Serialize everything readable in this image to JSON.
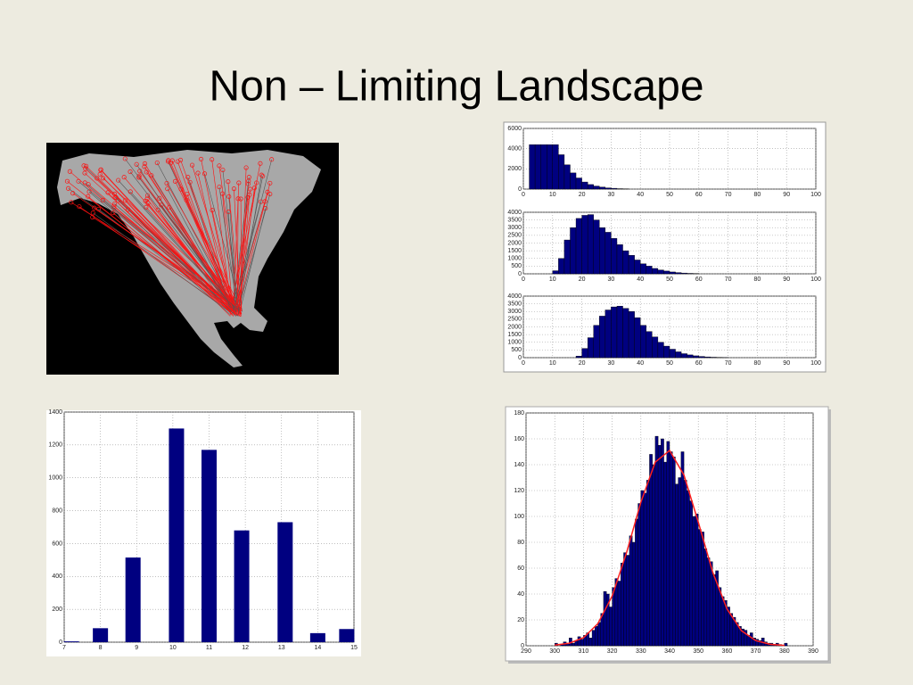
{
  "title": "Non – Limiting Landscape",
  "chart_data": [
    {
      "type": "histogram",
      "color": "#000080",
      "grid": true,
      "bins": [
        2,
        4,
        6,
        8,
        10,
        12,
        14,
        16,
        18,
        20,
        22,
        24,
        26,
        28,
        30,
        32,
        34,
        36
      ],
      "values": [
        4400,
        4400,
        4400,
        4400,
        4400,
        3400,
        2400,
        1600,
        1100,
        700,
        450,
        300,
        200,
        120,
        80,
        40,
        20
      ],
      "xlim": [
        0,
        100
      ],
      "xticks": [
        0,
        10,
        20,
        30,
        40,
        50,
        60,
        70,
        80,
        90,
        100
      ],
      "ylim": [
        0,
        6000
      ],
      "yticks": [
        0,
        2000,
        4000,
        6000
      ]
    },
    {
      "type": "histogram",
      "color": "#000080",
      "grid": true,
      "bins": [
        10,
        12,
        14,
        16,
        18,
        20,
        22,
        24,
        26,
        28,
        30,
        32,
        34,
        36,
        38,
        40,
        42,
        44,
        46,
        48,
        50,
        52,
        54,
        56,
        58,
        60
      ],
      "values": [
        200,
        1000,
        2200,
        3000,
        3600,
        3800,
        3850,
        3500,
        3000,
        2700,
        2300,
        1900,
        1500,
        1200,
        900,
        650,
        500,
        350,
        250,
        180,
        120,
        80,
        50,
        30,
        20
      ],
      "xlim": [
        0,
        100
      ],
      "xticks": [
        0,
        10,
        20,
        30,
        40,
        50,
        60,
        70,
        80,
        90,
        100
      ],
      "ylim": [
        0,
        4000
      ],
      "yticks": [
        0,
        500,
        1000,
        1500,
        2000,
        2500,
        3000,
        3500,
        4000
      ]
    },
    {
      "type": "histogram",
      "color": "#000080",
      "grid": true,
      "bins": [
        18,
        20,
        22,
        24,
        26,
        28,
        30,
        32,
        34,
        36,
        38,
        40,
        42,
        44,
        46,
        48,
        50,
        52,
        54,
        56,
        58,
        60,
        62,
        64,
        66,
        68,
        70
      ],
      "values": [
        100,
        600,
        1300,
        2100,
        2700,
        3100,
        3300,
        3350,
        3200,
        3000,
        2600,
        2100,
        1700,
        1350,
        1000,
        750,
        550,
        380,
        260,
        180,
        120,
        80,
        50,
        30,
        20,
        10
      ],
      "xlim": [
        0,
        100
      ],
      "xticks": [
        0,
        10,
        20,
        30,
        40,
        50,
        60,
        70,
        80,
        90,
        100
      ],
      "ylim": [
        0,
        4000
      ],
      "yticks": [
        0,
        500,
        1000,
        1500,
        2000,
        2500,
        3000,
        3500,
        4000
      ]
    },
    {
      "type": "bar",
      "color": "#000080",
      "grid": true,
      "x": [
        7.2,
        8.0,
        8.9,
        10.1,
        11.0,
        11.9,
        13.1,
        14.0,
        14.8
      ],
      "values": [
        5,
        85,
        515,
        1300,
        1170,
        680,
        730,
        55,
        80
      ],
      "xlim": [
        7,
        15
      ],
      "xticks": [
        7,
        8,
        9,
        10,
        11,
        12,
        13,
        14,
        15
      ],
      "ylim": [
        0,
        1400
      ],
      "yticks": [
        0,
        200,
        400,
        600,
        800,
        1000,
        1200,
        1400
      ]
    },
    {
      "type": "histogram",
      "color": "#000080",
      "grid": true,
      "bins": [
        300,
        301,
        302,
        303,
        304,
        305,
        306,
        307,
        308,
        309,
        310,
        311,
        312,
        313,
        314,
        315,
        316,
        317,
        318,
        319,
        320,
        321,
        322,
        323,
        324,
        325,
        326,
        327,
        328,
        329,
        330,
        331,
        332,
        333,
        334,
        335,
        336,
        337,
        338,
        339,
        340,
        341,
        342,
        343,
        344,
        345,
        346,
        347,
        348,
        349,
        350,
        351,
        352,
        353,
        354,
        355,
        356,
        357,
        358,
        359,
        360,
        361,
        362,
        363,
        364,
        365,
        366,
        367,
        368,
        369,
        370,
        371,
        372,
        373,
        374,
        375,
        376,
        377,
        378,
        379,
        380,
        381
      ],
      "values": [
        2,
        0,
        1,
        3,
        2,
        6,
        2,
        4,
        7,
        5,
        8,
        10,
        6,
        12,
        15,
        18,
        25,
        42,
        40,
        30,
        45,
        52,
        50,
        64,
        72,
        70,
        85,
        80,
        98,
        110,
        120,
        118,
        128,
        148,
        140,
        162,
        155,
        160,
        142,
        158,
        150,
        146,
        125,
        130,
        150,
        128,
        120,
        112,
        100,
        102,
        90,
        88,
        75,
        68,
        65,
        55,
        58,
        45,
        38,
        35,
        30,
        25,
        22,
        18,
        15,
        13,
        12,
        8,
        10,
        6,
        5,
        4,
        6,
        3,
        2,
        2,
        1,
        2,
        1,
        0,
        2
      ],
      "fit": {
        "color": "#ff2020",
        "x": [
          300,
          305,
          310,
          315,
          320,
          325,
          330,
          335,
          340,
          345,
          350,
          355,
          360,
          365,
          370,
          375,
          380
        ],
        "values": [
          0.5,
          1.9,
          6.2,
          17,
          38.5,
          71.9,
          111,
          142,
          151,
          132,
          95.5,
          57,
          28.4,
          11.7,
          4,
          1.1,
          0.3
        ]
      },
      "xlim": [
        290,
        390
      ],
      "xticks": [
        290,
        300,
        310,
        320,
        330,
        340,
        350,
        360,
        370,
        380,
        390
      ],
      "ylim": [
        0,
        180
      ],
      "yticks": [
        0,
        20,
        40,
        60,
        80,
        100,
        120,
        140,
        160,
        180
      ]
    }
  ]
}
